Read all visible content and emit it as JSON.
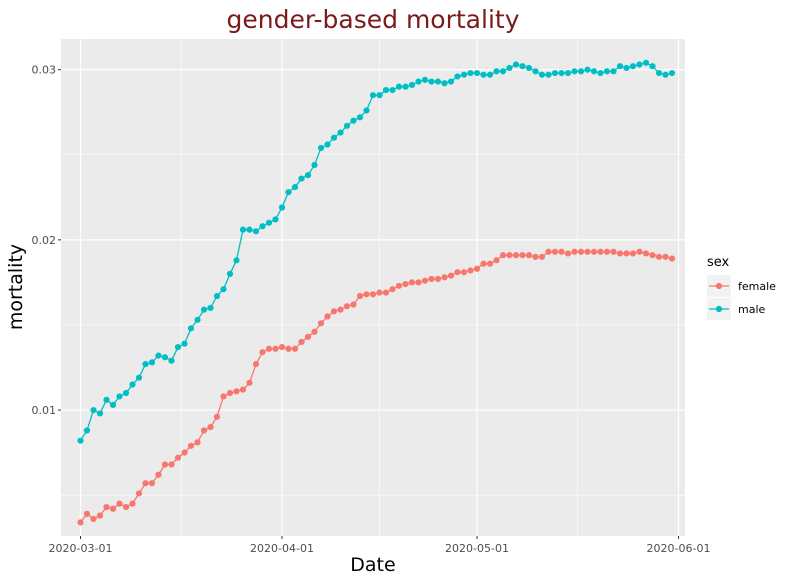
{
  "chart_data": {
    "type": "line",
    "title": "gender-based mortality",
    "xlabel": "Date",
    "ylabel": "mortality",
    "x_start": "2020-03-01",
    "x_end": "2020-05-31",
    "xlim": [
      "2020-02-27",
      "2020-06-02"
    ],
    "ylim": [
      0.0026,
      0.0318
    ],
    "x_ticks": [
      "2020-03-01",
      "2020-04-01",
      "2020-05-01",
      "2020-06-01"
    ],
    "y_ticks": [
      0.01,
      0.02,
      0.03
    ],
    "y_tick_labels": [
      "0.01",
      "0.02",
      "0.03"
    ],
    "grid": true,
    "markers": true,
    "legend": {
      "title": "sex",
      "position": "right"
    },
    "series": [
      {
        "name": "female",
        "color": "#F8766D",
        "values": [
          0.0034,
          0.0039,
          0.0036,
          0.0038,
          0.0043,
          0.0042,
          0.0045,
          0.0043,
          0.0045,
          0.0051,
          0.0057,
          0.0057,
          0.0062,
          0.0068,
          0.0068,
          0.0072,
          0.0075,
          0.0079,
          0.0081,
          0.0088,
          0.009,
          0.0096,
          0.0108,
          0.011,
          0.0111,
          0.0112,
          0.0116,
          0.0127,
          0.0134,
          0.0136,
          0.0136,
          0.0137,
          0.0136,
          0.0136,
          0.014,
          0.0143,
          0.0146,
          0.0151,
          0.0155,
          0.0158,
          0.0159,
          0.0161,
          0.0162,
          0.0167,
          0.0168,
          0.0168,
          0.0169,
          0.0169,
          0.0171,
          0.0173,
          0.0174,
          0.0175,
          0.0175,
          0.0176,
          0.0177,
          0.0177,
          0.0178,
          0.0179,
          0.0181,
          0.0181,
          0.0182,
          0.0183,
          0.0186,
          0.0186,
          0.0188,
          0.0191,
          0.0191,
          0.0191,
          0.0191,
          0.0191,
          0.019,
          0.019,
          0.0193,
          0.0193,
          0.0193,
          0.0192,
          0.0193,
          0.0193,
          0.0193,
          0.0193,
          0.0193,
          0.0193,
          0.0193,
          0.0192,
          0.0192,
          0.0192,
          0.0193,
          0.0192,
          0.0191,
          0.019,
          0.019,
          0.0189
        ]
      },
      {
        "name": "male",
        "color": "#00BFC4",
        "values": [
          0.0082,
          0.0088,
          0.01,
          0.0098,
          0.0106,
          0.0103,
          0.0108,
          0.011,
          0.0115,
          0.0119,
          0.0127,
          0.0128,
          0.0132,
          0.0131,
          0.0129,
          0.0137,
          0.0139,
          0.0148,
          0.0153,
          0.0159,
          0.016,
          0.0167,
          0.0171,
          0.018,
          0.0188,
          0.0206,
          0.0206,
          0.0205,
          0.0208,
          0.021,
          0.0212,
          0.0219,
          0.0228,
          0.0231,
          0.0236,
          0.0238,
          0.0244,
          0.0254,
          0.0256,
          0.026,
          0.0263,
          0.0267,
          0.027,
          0.0272,
          0.0276,
          0.0285,
          0.0285,
          0.0288,
          0.0288,
          0.029,
          0.029,
          0.0291,
          0.0293,
          0.0294,
          0.0293,
          0.0293,
          0.0292,
          0.0293,
          0.0296,
          0.0297,
          0.0298,
          0.0298,
          0.0297,
          0.0297,
          0.0299,
          0.0299,
          0.0301,
          0.0303,
          0.0302,
          0.0301,
          0.0299,
          0.0297,
          0.0297,
          0.0298,
          0.0298,
          0.0298,
          0.0299,
          0.0299,
          0.03,
          0.0299,
          0.0298,
          0.0299,
          0.0299,
          0.0302,
          0.0301,
          0.0302,
          0.0303,
          0.0304,
          0.0302,
          0.0298,
          0.0297,
          0.0298
        ]
      }
    ]
  }
}
